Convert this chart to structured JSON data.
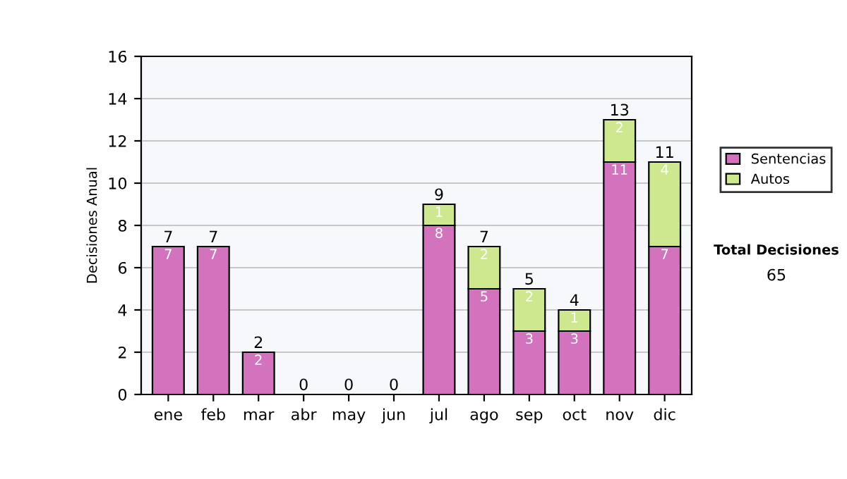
{
  "chart_data": {
    "type": "bar",
    "stacked": true,
    "ylabel": "Decisiones Anual",
    "categories": [
      "ene",
      "feb",
      "mar",
      "abr",
      "may",
      "jun",
      "jul",
      "ago",
      "sep",
      "oct",
      "nov",
      "dic"
    ],
    "series": [
      {
        "name": "Sentencias",
        "color": "#d373bd",
        "values": [
          7,
          7,
          2,
          0,
          0,
          0,
          8,
          5,
          3,
          3,
          11,
          7
        ],
        "value_labels": [
          "7",
          "7",
          "2",
          null,
          null,
          null,
          "8",
          "5",
          "3",
          "3",
          "11",
          "7"
        ]
      },
      {
        "name": "Autos",
        "color": "#cde88f",
        "values": [
          0,
          0,
          0,
          0,
          0,
          0,
          1,
          2,
          2,
          1,
          2,
          4
        ],
        "value_labels": [
          null,
          null,
          null,
          null,
          null,
          null,
          "1",
          "2",
          "2",
          "1",
          "2",
          "4"
        ]
      }
    ],
    "totals": [
      "7",
      "7",
      "2",
      "0",
      "0",
      "0",
      "9",
      "7",
      "5",
      "4",
      "13",
      "11"
    ],
    "ylim": [
      0,
      16
    ],
    "yticks": [
      0,
      2,
      4,
      6,
      8,
      10,
      12,
      14,
      16
    ],
    "grid": "y",
    "legend": "right",
    "annotations": [
      "Total Decisiones",
      "65"
    ]
  }
}
